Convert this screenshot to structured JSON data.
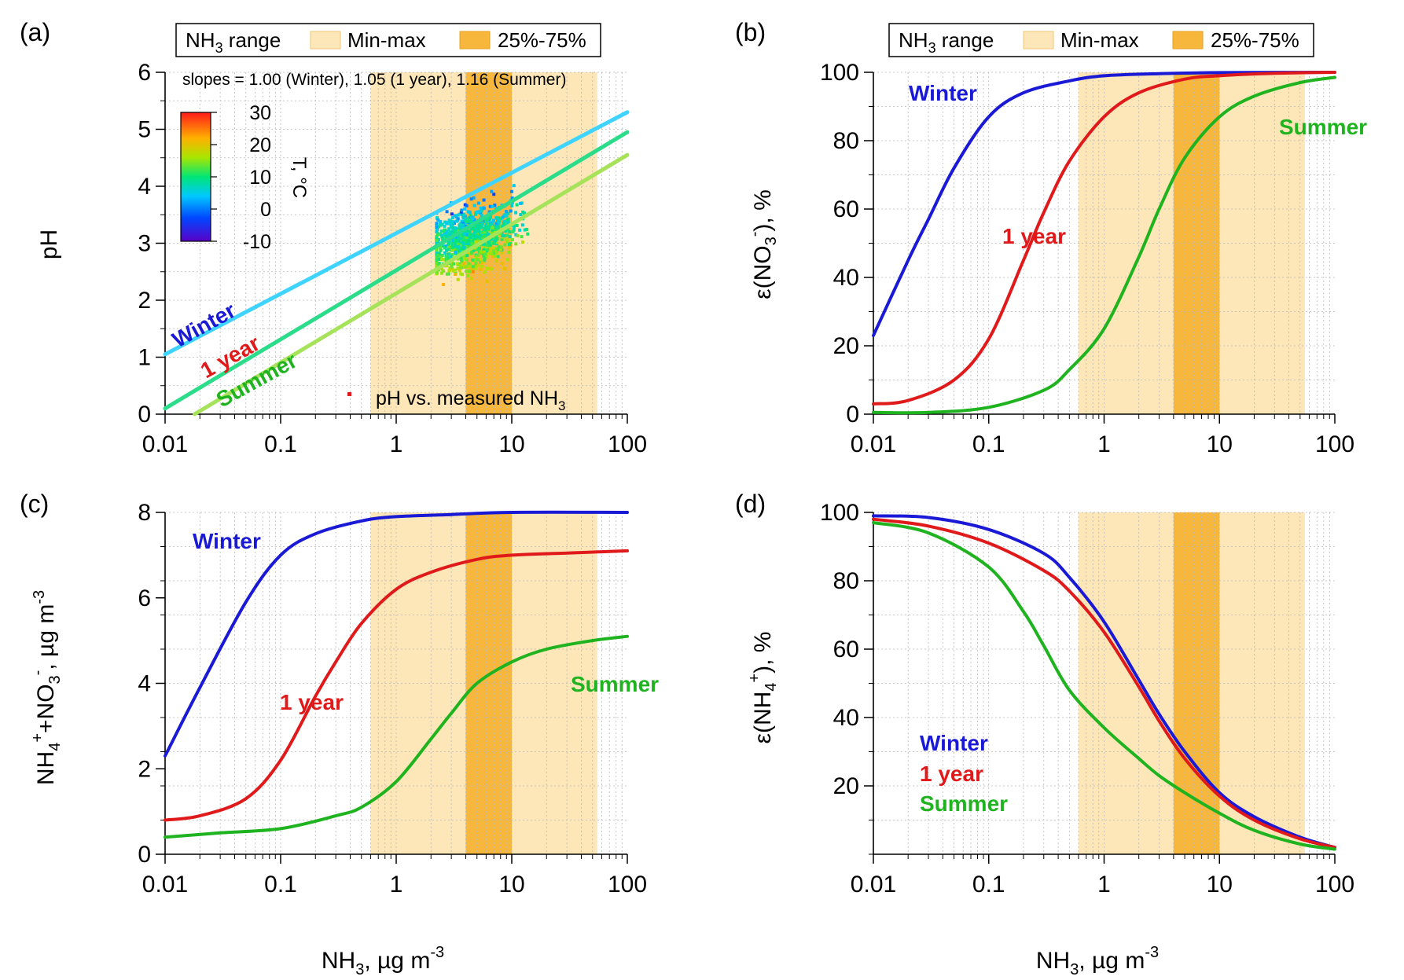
{
  "chart_data": [
    {
      "panel": "(a)",
      "type": "line",
      "ylabel": "pH",
      "xlabel": "",
      "x_scale": "log",
      "xlim": [
        0.01,
        100
      ],
      "ylim": [
        0,
        6
      ],
      "x_ticks": [
        "0.01",
        "0.1",
        "1",
        "10",
        "100"
      ],
      "y_ticks": [
        "0",
        "1",
        "2",
        "3",
        "4",
        "5",
        "6"
      ],
      "slopes_text": "slopes = 1.00 (Winter), 1.05 (1 year), 1.16 (Summer)",
      "legend": {
        "range_label": "NH3 range",
        "minmax_label": "Min-max",
        "iqr_label": "25%-75%"
      },
      "shaded_ranges": {
        "minmax": [
          0.6,
          55
        ],
        "iqr": [
          4,
          10
        ]
      },
      "series": [
        {
          "name": "Winter",
          "x": [
            0.01,
            100
          ],
          "y": [
            1.05,
            5.3
          ]
        },
        {
          "name": "1 year",
          "x": [
            0.01,
            100
          ],
          "y": [
            0.1,
            4.95
          ]
        },
        {
          "name": "Summer",
          "x": [
            0.018,
            100
          ],
          "y": [
            0.0,
            4.55
          ]
        }
      ],
      "scatter_legend": "pH vs. measured NH3",
      "colorbar": {
        "label": "T, °C",
        "ticks": [
          "30",
          "20",
          "10",
          "0",
          "-10"
        ],
        "range": [
          -10,
          30
        ]
      },
      "labels": [
        "Winter",
        "1 year",
        "Summer"
      ]
    },
    {
      "panel": "(b)",
      "type": "line",
      "ylabel": "ε(NO3-), %",
      "x_scale": "log",
      "xlim": [
        0.01,
        100
      ],
      "ylim": [
        0,
        100
      ],
      "x_ticks": [
        "0.01",
        "0.1",
        "1",
        "10",
        "100"
      ],
      "y_ticks": [
        "0",
        "20",
        "40",
        "60",
        "80",
        "100"
      ],
      "legend": {
        "range_label": "NH3 range",
        "minmax_label": "Min-max",
        "iqr_label": "25%-75%"
      },
      "shaded_ranges": {
        "minmax": [
          0.6,
          55
        ],
        "iqr": [
          4,
          10
        ]
      },
      "series": [
        {
          "name": "Winter",
          "x": [
            0.01,
            0.02,
            0.03,
            0.05,
            0.1,
            0.2,
            0.5,
            1,
            3,
            10,
            100
          ],
          "y": [
            23,
            45,
            57,
            72,
            87,
            94,
            97.5,
            99,
            99.6,
            99.9,
            100
          ]
        },
        {
          "name": "1 year",
          "x": [
            0.01,
            0.02,
            0.05,
            0.1,
            0.2,
            0.3,
            0.5,
            1,
            2,
            5,
            10,
            30,
            100
          ],
          "y": [
            3,
            4,
            10,
            22,
            45,
            59,
            74,
            87,
            94,
            98,
            99,
            99.7,
            100
          ]
        },
        {
          "name": "Summer",
          "x": [
            0.01,
            0.03,
            0.1,
            0.3,
            0.5,
            1,
            2,
            3,
            5,
            10,
            20,
            50,
            100
          ],
          "y": [
            0.5,
            0.5,
            2,
            7,
            13,
            25,
            46,
            60,
            75,
            87,
            93,
            97,
            98.5
          ]
        }
      ],
      "labels": [
        "Winter",
        "1 year",
        "Summer"
      ]
    },
    {
      "panel": "(c)",
      "type": "line",
      "ylabel": "NH4+ + NO3-, µg m-3",
      "xlabel": "NH3, µg m-3",
      "x_scale": "log",
      "xlim": [
        0.01,
        100
      ],
      "ylim": [
        0,
        8
      ],
      "x_ticks": [
        "0.01",
        "0.1",
        "1",
        "10",
        "100"
      ],
      "y_ticks": [
        "0",
        "2",
        "4",
        "6",
        "8"
      ],
      "shaded_ranges": {
        "minmax": [
          0.6,
          55
        ],
        "iqr": [
          4,
          10
        ]
      },
      "series": [
        {
          "name": "Winter",
          "x": [
            0.01,
            0.02,
            0.05,
            0.1,
            0.2,
            0.5,
            1,
            3,
            10,
            100
          ],
          "y": [
            2.3,
            3.9,
            5.9,
            7.0,
            7.5,
            7.8,
            7.9,
            7.95,
            8.0,
            8.0
          ]
        },
        {
          "name": "1 year",
          "x": [
            0.01,
            0.02,
            0.05,
            0.1,
            0.2,
            0.3,
            0.5,
            1,
            2,
            5,
            10,
            30,
            100
          ],
          "y": [
            0.8,
            0.9,
            1.3,
            2.2,
            3.7,
            4.5,
            5.4,
            6.2,
            6.6,
            6.9,
            7.0,
            7.05,
            7.1
          ]
        },
        {
          "name": "Summer",
          "x": [
            0.01,
            0.03,
            0.1,
            0.3,
            0.5,
            1,
            2,
            3,
            5,
            10,
            20,
            50,
            100
          ],
          "y": [
            0.4,
            0.5,
            0.6,
            0.9,
            1.1,
            1.7,
            2.7,
            3.3,
            4.0,
            4.5,
            4.8,
            5.0,
            5.1
          ]
        }
      ],
      "labels": [
        "Winter",
        "1 year",
        "Summer"
      ]
    },
    {
      "panel": "(d)",
      "type": "line",
      "ylabel": "ε(NH4+), %",
      "xlabel": "NH3, µg m-3",
      "x_scale": "log",
      "xlim": [
        0.01,
        100
      ],
      "ylim": [
        0,
        100
      ],
      "x_ticks": [
        "0.01",
        "0.1",
        "1",
        "10",
        "100"
      ],
      "y_ticks": [
        "20",
        "40",
        "60",
        "80",
        "100"
      ],
      "shaded_ranges": {
        "minmax": [
          0.6,
          55
        ],
        "iqr": [
          4,
          10
        ]
      },
      "series": [
        {
          "name": "Winter",
          "x": [
            0.01,
            0.03,
            0.1,
            0.3,
            0.5,
            1,
            2,
            3,
            5,
            10,
            20,
            50,
            100
          ],
          "y": [
            99,
            98.5,
            95,
            88,
            81,
            68,
            51,
            41,
            30,
            18,
            11,
            5,
            2
          ]
        },
        {
          "name": "1 year",
          "x": [
            0.01,
            0.03,
            0.1,
            0.3,
            0.5,
            1,
            2,
            3,
            5,
            10,
            20,
            50,
            100
          ],
          "y": [
            98,
            96,
            91,
            83,
            77,
            65,
            49,
            39,
            28,
            17,
            10,
            4.5,
            2
          ]
        },
        {
          "name": "Summer",
          "x": [
            0.01,
            0.03,
            0.1,
            0.2,
            0.3,
            0.5,
            1,
            2,
            3,
            5,
            10,
            20,
            50,
            100
          ],
          "y": [
            97,
            94,
            84,
            71,
            61,
            48,
            37,
            28,
            23,
            18,
            12,
            7,
            3,
            1.5
          ]
        }
      ],
      "legend_labels": [
        "Winter",
        "1 year",
        "Summer"
      ]
    }
  ],
  "text": {
    "panel_a": "(a)",
    "panel_b": "(b)",
    "panel_c": "(c)",
    "panel_d": "(d)",
    "legend_range": "NH",
    "legend_range_sub": "3",
    "legend_range_tail": " range",
    "legend_minmax": "Min-max",
    "legend_iqr": "25%-75%",
    "slopes": "slopes = 1.00 (Winter), 1.05 (1 year), 1.16 (Summer)",
    "winter": "Winter",
    "one_year": "1 year",
    "summer": "Summer",
    "scatter_legend_a": "pH vs. measured NH",
    "scatter_legend_sub": "3",
    "ylabel_a": "pH",
    "cbar_label": "T, °C",
    "xlabel_main": "NH",
    "xlabel_sub": "3",
    "xlabel_tail": ", µg m",
    "xlabel_sup": "-3"
  },
  "colors": {
    "winter": "#1a1ad6",
    "one_year": "#e01a1a",
    "summer": "#1fb31f",
    "minmax": "#fde6b8",
    "iqr": "#f7b73c",
    "grid": "#b8b8b8"
  }
}
